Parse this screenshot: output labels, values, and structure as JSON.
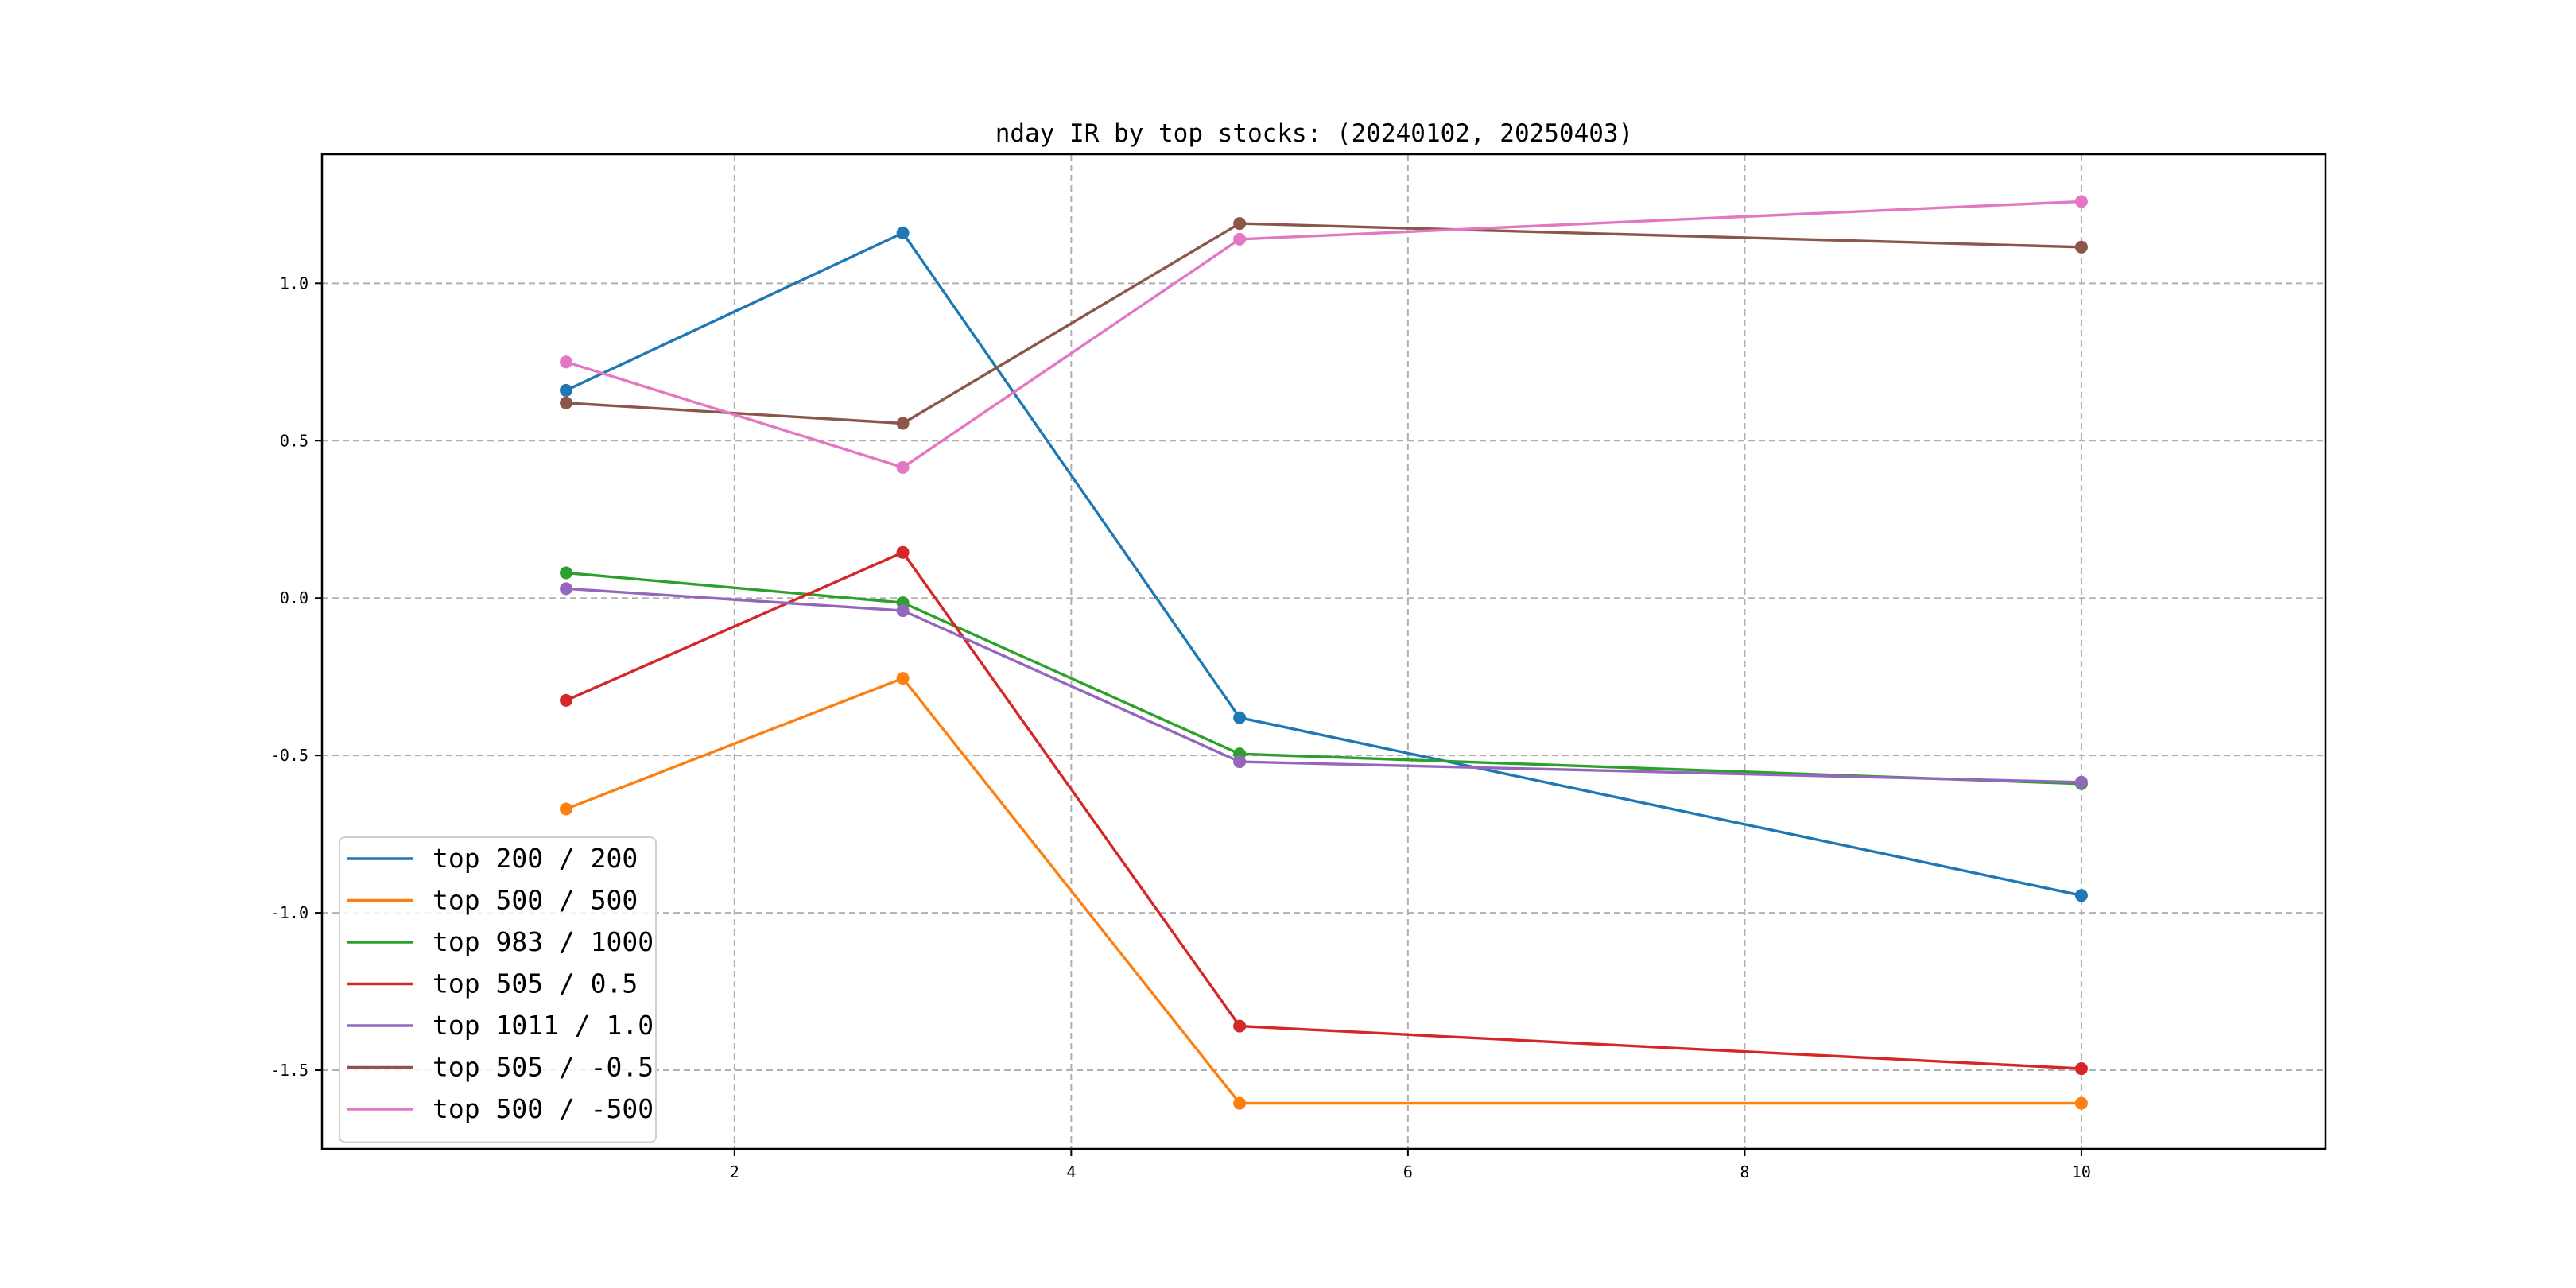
{
  "chart_data": {
    "type": "line",
    "title": "nday IR by top stocks: (20240102, 20250403)",
    "xlabel": "",
    "ylabel": "",
    "x": [
      1,
      3,
      5,
      10
    ],
    "xlim": [
      -0.45,
      11.45
    ],
    "ylim": [
      -1.75,
      1.41
    ],
    "xticks": [
      2,
      4,
      6,
      8,
      10
    ],
    "xtick_labels": [
      "2",
      "4",
      "6",
      "8",
      "10"
    ],
    "yticks": [
      -1.5,
      -1.0,
      -0.5,
      0.0,
      0.5,
      1.0
    ],
    "ytick_labels": [
      "-1.5",
      "-1.0",
      "-0.5",
      "0.0",
      "0.5",
      "1.0"
    ],
    "grid": true,
    "legend_position": "lower-left",
    "series": [
      {
        "name": "top 200 / 200",
        "color": "#1f77b4",
        "values": [
          0.66,
          1.16,
          -0.38,
          -0.945
        ]
      },
      {
        "name": "top 500 / 500",
        "color": "#ff7f0e",
        "values": [
          -0.67,
          -0.255,
          -1.605,
          -1.605
        ]
      },
      {
        "name": "top 983 / 1000",
        "color": "#2ca02c",
        "values": [
          0.08,
          -0.015,
          -0.495,
          -0.59
        ]
      },
      {
        "name": "top 505 / 0.5",
        "color": "#d62728",
        "values": [
          -0.325,
          0.145,
          -1.36,
          -1.495
        ]
      },
      {
        "name": "top 1011 / 1.0",
        "color": "#9467bd",
        "values": [
          0.03,
          -0.04,
          -0.52,
          -0.585
        ]
      },
      {
        "name": "top 505 / -0.5",
        "color": "#8c564b",
        "values": [
          0.62,
          0.555,
          1.19,
          1.115
        ]
      },
      {
        "name": "top 500 / -500",
        "color": "#e377c2",
        "values": [
          0.75,
          0.415,
          1.14,
          1.26
        ]
      }
    ]
  }
}
